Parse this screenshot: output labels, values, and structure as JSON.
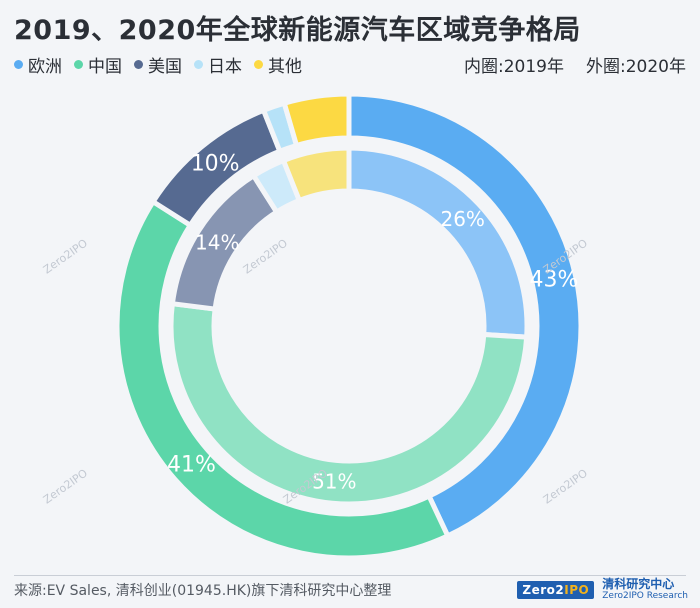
{
  "chart_data": {
    "type": "pie",
    "subtype": "nested-donut",
    "title": "2019、2020年全球新能源汽车区域竞争格局",
    "categories": [
      "欧洲",
      "中国",
      "美国",
      "日本",
      "其他"
    ],
    "colors": {
      "outer": [
        "#5aacf2",
        "#5cd6a9",
        "#566a91",
        "#b6e2f8",
        "#fcd943"
      ],
      "inner": [
        "#8cc4f7",
        "#90e2c4",
        "#8795b2",
        "#cdeafa",
        "#f7e37c"
      ]
    },
    "series": [
      {
        "name": "2019年",
        "ring": "内圈",
        "values": [
          26,
          51,
          14,
          3,
          6
        ],
        "labels": [
          "26%",
          "51%",
          "14%",
          "",
          ""
        ]
      },
      {
        "name": "2020年",
        "ring": "外圈",
        "values": [
          43,
          41,
          10,
          1.5,
          4.5
        ],
        "labels": [
          "43%",
          "41%",
          "10%",
          "",
          ""
        ]
      }
    ],
    "legend_position": "top-left"
  },
  "header": {
    "inner_note": "内圈:2019年",
    "outer_note": "外圈:2020年"
  },
  "footer": {
    "source": "来源:EV Sales, 清科创业(01945.HK)旗下清科研究中心整理",
    "brand_logo_main": "Zero2",
    "brand_logo_ipo": "IPO",
    "brand_name": "清科研究中心",
    "brand_name_en": "Zero2IPO Research"
  }
}
